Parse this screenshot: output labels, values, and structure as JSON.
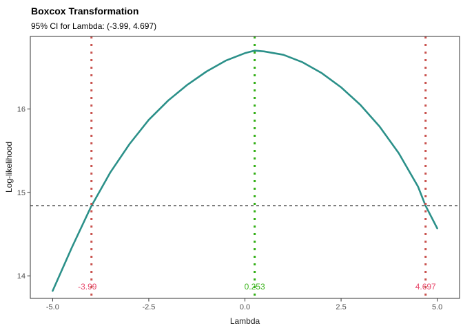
{
  "header": {
    "title": "Boxcox Transformation",
    "subtitle": "95% CI for Lambda: (-3.99, 4.697)"
  },
  "axes": {
    "x_title": "Lambda",
    "y_title": "Log-likelihood"
  },
  "chart_data": {
    "type": "line",
    "title": "Boxcox Transformation",
    "subtitle": "95% CI for Lambda: (-3.99, 4.697)",
    "xlabel": "Lambda",
    "ylabel": "Log-likelihood",
    "xlim": [
      -5.58,
      5.58
    ],
    "ylim": [
      13.73,
      16.87
    ],
    "grid": false,
    "legend_position": "none",
    "x_ticks": {
      "values": [
        -5.0,
        -2.5,
        0.0,
        2.5,
        5.0
      ],
      "labels": [
        "-5.0",
        "-2.5",
        "0.0",
        "2.5",
        "5.0"
      ]
    },
    "y_ticks": {
      "values": [
        14,
        15,
        16
      ],
      "labels": [
        "14",
        "15",
        "16"
      ]
    },
    "series": [
      {
        "name": "log-likelihood-curve",
        "color": "#2b9089",
        "x": [
          -5.0,
          -4.5,
          -4.0,
          -3.5,
          -3.0,
          -2.5,
          -2.0,
          -1.5,
          -1.0,
          -0.5,
          0.0,
          0.253,
          0.5,
          1.0,
          1.5,
          2.0,
          2.5,
          3.0,
          3.5,
          4.0,
          4.5,
          4.697,
          5.0
        ],
        "y": [
          13.82,
          14.34,
          14.83,
          15.24,
          15.58,
          15.87,
          16.1,
          16.29,
          16.45,
          16.58,
          16.67,
          16.7,
          16.69,
          16.65,
          16.56,
          16.43,
          16.26,
          16.05,
          15.79,
          15.47,
          15.07,
          14.84,
          14.57
        ]
      }
    ],
    "best_lambda": 0.253,
    "ci_lambda": [
      -3.99,
      4.697
    ],
    "peak_loglik": 16.7,
    "vlines": [
      {
        "name": "ci-lower",
        "x": -3.99,
        "label": "-3.99",
        "line_color": "#c9534f",
        "label_color": "#e8486b",
        "style": "dotted"
      },
      {
        "name": "best-lambda",
        "x": 0.253,
        "label": "0.253",
        "line_color": "#31ae14",
        "label_color": "#3db41e",
        "style": "dotted"
      },
      {
        "name": "ci-upper",
        "x": 4.697,
        "label": "4.697",
        "line_color": "#c9534f",
        "label_color": "#e8486b",
        "style": "dotted"
      }
    ],
    "hlines": [
      {
        "name": "ci-cutoff",
        "y": 14.84,
        "color": "#000000",
        "style": "dashed"
      }
    ],
    "vline_label_y": 13.87,
    "colors": {
      "curve": "#2b9089",
      "panel_border": "#333333",
      "tick_label": "#4d4d4d",
      "ci_line_red": "#c9534f",
      "ci_text_red": "#e8486b",
      "lambda_line_green": "#31ae14",
      "lambda_text_green": "#3db41e"
    }
  }
}
